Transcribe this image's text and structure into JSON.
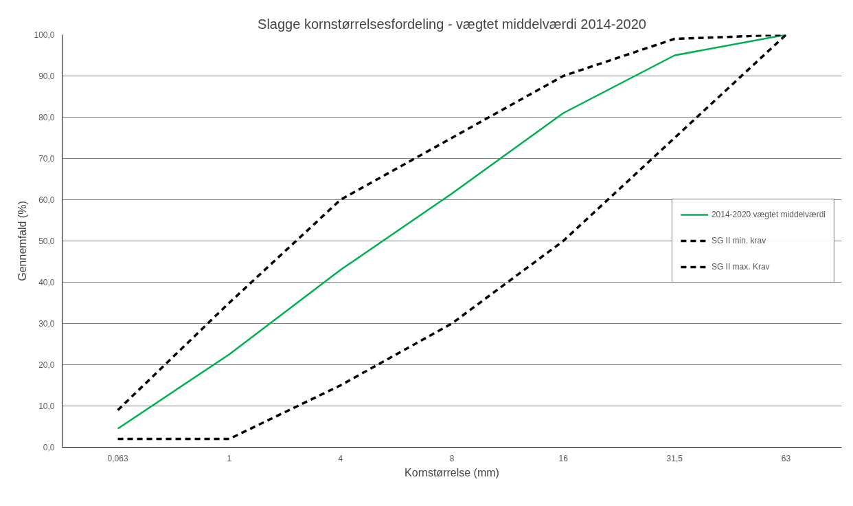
{
  "chart_data": {
    "type": "line",
    "title": "Slagge kornstørrelsesfordeling - vægtet middelværdi 2014-2020",
    "xlabel": "Kornstørrelse (mm)",
    "ylabel": "Gennemfald (%)",
    "categories": [
      "0,063",
      "1",
      "4",
      "8",
      "16",
      "31,5",
      "63"
    ],
    "series": [
      {
        "name": "2014-2020 vægtet middelværdi",
        "color": "#00b050",
        "line_style": "solid",
        "values": [
          4.5,
          22.5,
          43,
          61.5,
          81,
          95,
          100
        ]
      },
      {
        "name": "SG II min. krav",
        "color": "#000000",
        "line_style": "dashed",
        "values": [
          9,
          35,
          60,
          75,
          90,
          99,
          100
        ]
      },
      {
        "name": "SG II max. Krav",
        "color": "#000000",
        "line_style": "dashed",
        "values": [
          2,
          2,
          15,
          30,
          50,
          75,
          100
        ]
      }
    ],
    "ylim": [
      0,
      100
    ],
    "yticks": [
      {
        "value": 0,
        "label": "0,0"
      },
      {
        "value": 10,
        "label": "10,0"
      },
      {
        "value": 20,
        "label": "20,0"
      },
      {
        "value": 30,
        "label": "30,0"
      },
      {
        "value": 40,
        "label": "40,0"
      },
      {
        "value": 50,
        "label": "50,0"
      },
      {
        "value": 60,
        "label": "60,0"
      },
      {
        "value": 70,
        "label": "70,0"
      },
      {
        "value": 80,
        "label": "80,0"
      },
      {
        "value": 90,
        "label": "90,0"
      },
      {
        "value": 100,
        "label": "100,0"
      }
    ],
    "grid": "y",
    "legend": "right",
    "marker": "none"
  }
}
